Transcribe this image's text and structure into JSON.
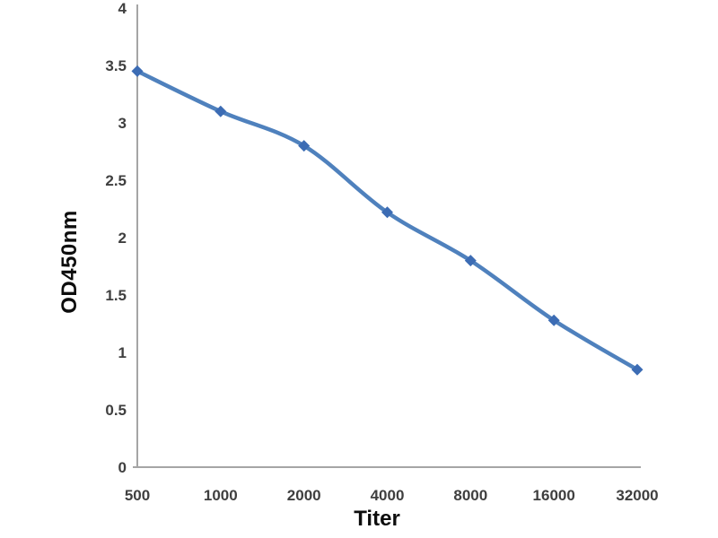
{
  "chart_data": {
    "type": "line",
    "categories": [
      "500",
      "1000",
      "2000",
      "4000",
      "8000",
      "16000",
      "32000"
    ],
    "series": [
      {
        "name": "OD450nm",
        "values": [
          3.45,
          3.1,
          2.8,
          2.22,
          1.8,
          1.28,
          0.85
        ]
      }
    ],
    "title": "",
    "xlabel": "Titer",
    "ylabel": "OD450nm",
    "ylim": [
      0,
      4
    ],
    "ytick_labels": [
      "0",
      "0.5",
      "1",
      "1.5",
      "2",
      "2.5",
      "3",
      "3.5",
      "4"
    ],
    "grid": false,
    "legend": false,
    "smooth_line": true,
    "marker": "diamond",
    "colors": {
      "line": "#4F81BD",
      "marker": "#3C6CB4",
      "axis": "#A5A5A5",
      "tick_text": "#3F3F3F",
      "title_text": "#0D0D0D",
      "background": "#FFFFFF"
    }
  }
}
